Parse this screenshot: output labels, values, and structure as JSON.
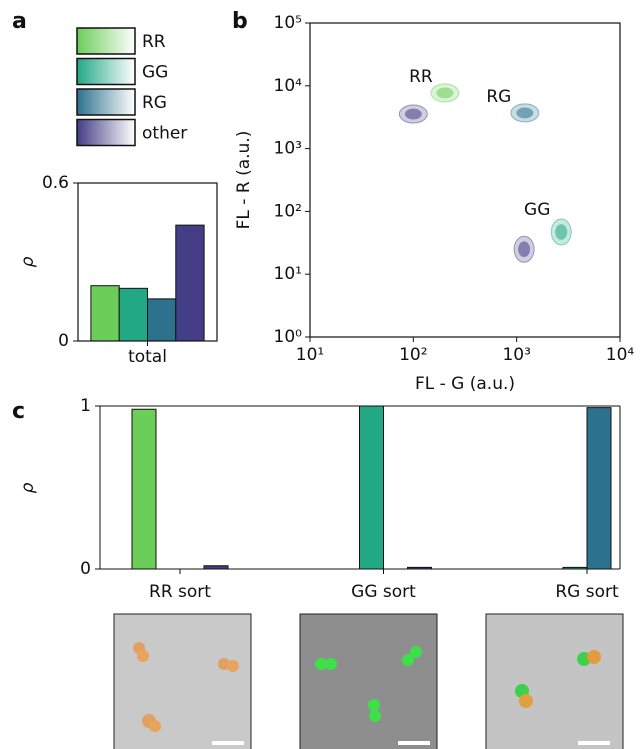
{
  "chart_data": [
    {
      "type": "bar",
      "panel_label": "a",
      "ylabel": "ρ",
      "categories": [
        "total"
      ],
      "series": [
        {
          "name": "RR",
          "color": "#6ccd59",
          "values": [
            0.21
          ]
        },
        {
          "name": "GG",
          "color": "#22a884",
          "values": [
            0.2
          ]
        },
        {
          "name": "RG",
          "color": "#2c728e",
          "values": [
            0.16
          ]
        },
        {
          "name": "other",
          "color": "#433e85",
          "values": [
            0.44
          ]
        }
      ],
      "ylim": [
        0,
        0.6
      ],
      "yticks": [
        0,
        0.6
      ],
      "legend": "top"
    },
    {
      "type": "density",
      "panel_label": "b",
      "xlabel": "FL - G (a.u.)",
      "ylabel": "FL - R (a.u.)",
      "log_x": true,
      "log_y": true,
      "series": [
        {
          "name": "RR",
          "color": "#6ccd59",
          "x": [
            202
          ],
          "y": [
            7700
          ]
        },
        {
          "name": "RG",
          "color": "#2c728e",
          "x": [
            1200
          ],
          "y": [
            3700
          ]
        },
        {
          "name": "GG",
          "color": "#22a884",
          "x": [
            2700
          ],
          "y": [
            47
          ]
        },
        {
          "color": "#433e85",
          "x": [
            100,
            1180
          ],
          "y": [
            3550,
            25
          ]
        }
      ],
      "xlim": [
        10,
        10000
      ],
      "ylim": [
        1,
        100000
      ],
      "xticks": [
        {
          "value": 10,
          "label": "10¹"
        },
        {
          "value": 100,
          "label": "10²"
        },
        {
          "value": 1000,
          "label": "10³"
        },
        {
          "value": 10000,
          "label": "10⁴"
        }
      ],
      "yticks": [
        {
          "value": 1,
          "label": "10⁰"
        },
        {
          "value": 10,
          "label": "10¹"
        },
        {
          "value": 100,
          "label": "10²"
        },
        {
          "value": 1000,
          "label": "10³"
        },
        {
          "value": 10000,
          "label": "10⁴"
        },
        {
          "value": 100000,
          "label": "10⁵"
        }
      ]
    },
    {
      "type": "grouped-bar",
      "panel_label": "c",
      "ylabel": "ρ",
      "categories": [
        "RR sort",
        "GG sort",
        "RG sort"
      ],
      "series": [
        {
          "color": "#6ccd59",
          "values": [
            0.98,
            0,
            0
          ]
        },
        {
          "color": "#22a884",
          "values": [
            0,
            1.0,
            0.01
          ]
        },
        {
          "color": "#2c728e",
          "values": [
            0,
            0,
            0.99
          ]
        },
        {
          "color": "#433e85",
          "values": [
            0.02,
            0.01,
            0
          ]
        }
      ],
      "ylim": [
        0,
        1
      ],
      "yticks": [
        0,
        1
      ]
    }
  ]
}
